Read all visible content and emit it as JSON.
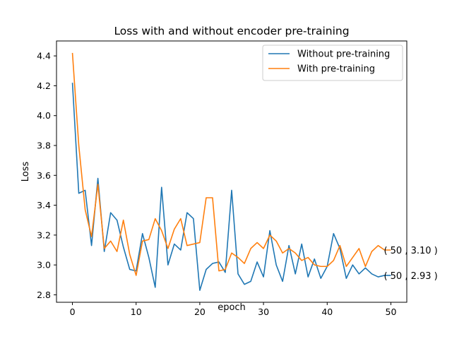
{
  "chart_data": {
    "type": "line",
    "title": "Loss with and without encoder pre-training",
    "xlabel": "epoch",
    "ylabel": "Loss",
    "xlim": [
      -2.5,
      52.5
    ],
    "ylim": [
      2.75,
      4.5
    ],
    "xticks": [
      0,
      10,
      20,
      30,
      40,
      50
    ],
    "yticks": [
      2.8,
      3.0,
      3.2,
      3.4,
      3.6,
      3.8,
      4.0,
      4.2,
      4.4
    ],
    "ytick_labels": [
      "2.8",
      "3.0",
      "3.2",
      "3.4",
      "3.6",
      "3.8",
      "4.0",
      "4.2",
      "4.4"
    ],
    "grid": false,
    "legend_position": "top-right",
    "x": [
      0,
      1,
      2,
      3,
      4,
      5,
      6,
      7,
      8,
      9,
      10,
      11,
      12,
      13,
      14,
      15,
      16,
      17,
      18,
      19,
      20,
      21,
      22,
      23,
      24,
      25,
      26,
      27,
      28,
      29,
      30,
      31,
      32,
      33,
      34,
      35,
      36,
      37,
      38,
      39,
      40,
      41,
      42,
      43,
      44,
      45,
      46,
      47,
      48,
      49,
      50
    ],
    "series": [
      {
        "name": "Without pre-training",
        "color": "#1f77b4",
        "values": [
          4.22,
          3.48,
          3.5,
          3.13,
          3.58,
          3.09,
          3.35,
          3.3,
          3.12,
          2.97,
          2.96,
          3.21,
          3.05,
          2.85,
          3.52,
          3.0,
          3.14,
          3.1,
          3.35,
          3.31,
          2.83,
          2.97,
          3.01,
          3.02,
          2.95,
          3.5,
          2.94,
          2.87,
          2.89,
          3.02,
          2.92,
          3.23,
          3.0,
          2.89,
          3.13,
          2.94,
          3.14,
          2.92,
          3.04,
          2.91,
          2.99,
          3.21,
          3.11,
          2.91,
          3.0,
          2.94,
          2.98,
          2.94,
          2.92,
          2.93,
          2.93
        ]
      },
      {
        "name": "With pre-training",
        "color": "#ff7f0e",
        "values": [
          4.42,
          3.8,
          3.37,
          3.19,
          3.54,
          3.11,
          3.16,
          3.09,
          3.3,
          3.07,
          2.93,
          3.16,
          3.17,
          3.31,
          3.23,
          3.11,
          3.24,
          3.31,
          3.13,
          3.14,
          3.15,
          3.45,
          3.45,
          2.96,
          2.97,
          3.08,
          3.05,
          3.01,
          3.11,
          3.15,
          3.11,
          3.2,
          3.16,
          3.08,
          3.11,
          3.08,
          3.03,
          3.05,
          3.0,
          2.99,
          2.99,
          3.03,
          3.13,
          2.99,
          3.05,
          3.11,
          2.99,
          3.09,
          3.13,
          3.1,
          3.1
        ]
      }
    ],
    "annotations": [
      {
        "text": "( 50 , 3.10 )",
        "x": 50,
        "y": 3.1
      },
      {
        "text": "( 50 , 2.93 )",
        "x": 50,
        "y": 2.93
      }
    ]
  }
}
